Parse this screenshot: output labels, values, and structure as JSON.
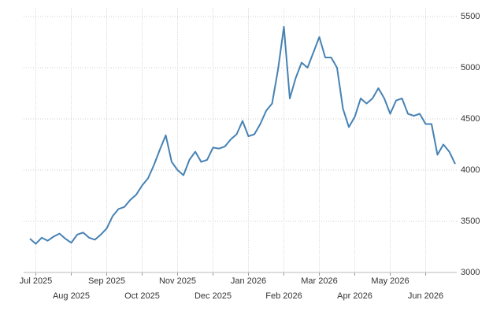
{
  "chart_data": {
    "type": "line",
    "categories": [
      null,
      "Jul 2025",
      null,
      null,
      null,
      null,
      null,
      "Aug 2025",
      null,
      null,
      null,
      null,
      null,
      "Sep 2025",
      null,
      null,
      null,
      null,
      null,
      "Oct 2025",
      null,
      null,
      null,
      null,
      null,
      "Nov 2025",
      null,
      null,
      null,
      null,
      null,
      "Dec 2025",
      null,
      null,
      null,
      null,
      null,
      "Jan 2026",
      null,
      null,
      null,
      null,
      null,
      "Feb 2026",
      null,
      null,
      null,
      null,
      null,
      "Mar 2026",
      null,
      null,
      null,
      null,
      null,
      "Apr 2026",
      null,
      null,
      null,
      null,
      null,
      "May 2026",
      null,
      null,
      null,
      null,
      null,
      "Jun 2026",
      null,
      null,
      null,
      null,
      null
    ],
    "series": [
      {
        "color": "#4682b4",
        "values": [
          3330,
          3280,
          3340,
          3310,
          3350,
          3380,
          3330,
          3290,
          3370,
          3390,
          3340,
          3320,
          3370,
          3430,
          3550,
          3620,
          3640,
          3710,
          3760,
          3850,
          3920,
          4050,
          4200,
          4340,
          4080,
          4000,
          3950,
          4100,
          4180,
          4080,
          4100,
          4220,
          4210,
          4230,
          4300,
          4350,
          4480,
          4330,
          4350,
          4450,
          4580,
          4650,
          4980,
          5400,
          4700,
          4900,
          5050,
          5000,
          5150,
          5300,
          5100,
          5100,
          5000,
          4600,
          4420,
          4520,
          4700,
          4650,
          4700,
          4800,
          4700,
          4550,
          4680,
          4700,
          4550,
          4530,
          4550,
          4450,
          4450,
          4150,
          4250,
          4180,
          4060
        ]
      }
    ],
    "ylim": [
      3000,
      5580
    ],
    "yticks": [
      3000,
      3500,
      4000,
      4500,
      5000,
      5500
    ],
    "grid": true,
    "y_axis_side": "right"
  }
}
